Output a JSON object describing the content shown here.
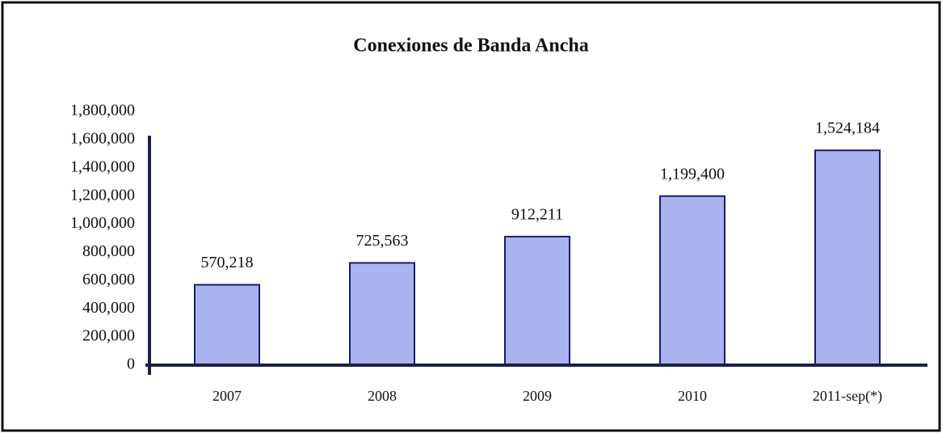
{
  "chart_data": {
    "type": "bar",
    "title": "Conexiones de Banda Ancha",
    "categories": [
      "2007",
      "2008",
      "2009",
      "2010",
      "2011-sep(*)"
    ],
    "values": [
      570218,
      725563,
      912211,
      1199400,
      1524184
    ],
    "value_labels": [
      "570,218",
      "725,563",
      "912,211",
      "1,199,400",
      "1,524,184"
    ],
    "color": "#aab2f0",
    "ylim": [
      0,
      1800000
    ],
    "yticks": [
      0,
      {
        "value": 200000,
        "label": "200,000"
      },
      {
        "value": 400000,
        "label": "400,000"
      },
      {
        "value": 600000,
        "label": "600,000"
      },
      {
        "value": 800000,
        "label": "800,000"
      },
      {
        "value": 1000000,
        "label": "1,000,000"
      },
      {
        "value": 1200000,
        "label": "1,200,000"
      },
      {
        "value": 1400000,
        "label": "1,400,000"
      },
      {
        "value": 1600000,
        "label": "1,600,000"
      },
      {
        "value": 1800000,
        "label": "1,800,000"
      }
    ],
    "grid": false
  }
}
